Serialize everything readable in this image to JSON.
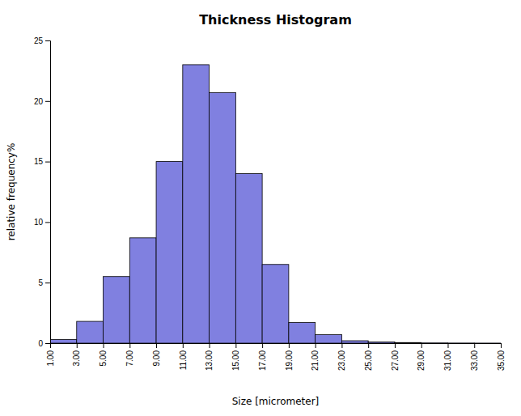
{
  "chart_data": {
    "type": "histogram",
    "title": "Thickness Histogram",
    "xlabel": "Size [micrometer]",
    "ylabel": "relative frequency%",
    "bins": [
      1,
      3,
      5,
      7,
      9,
      11,
      13,
      15,
      17,
      19,
      21,
      23,
      25,
      27,
      29,
      31,
      33,
      35
    ],
    "values": [
      0.3,
      1.8,
      5.5,
      8.7,
      15.0,
      23.0,
      20.7,
      14.0,
      6.5,
      1.7,
      0.7,
      0.2,
      0.1,
      0.05,
      0.02,
      0.01,
      0.005
    ],
    "color": "#8080e0",
    "xlim": [
      1,
      35
    ],
    "xticks": [
      {
        "value": 1,
        "label": "1.00"
      },
      {
        "value": 3,
        "label": "3.00"
      },
      {
        "value": 5,
        "label": "5.00"
      },
      {
        "value": 7,
        "label": "7.00"
      },
      {
        "value": 9,
        "label": "9.00"
      },
      {
        "value": 11,
        "label": "11.00"
      },
      {
        "value": 13,
        "label": "13.00"
      },
      {
        "value": 15,
        "label": "15.00"
      },
      {
        "value": 17,
        "label": "17.00"
      },
      {
        "value": 19,
        "label": "19.00"
      },
      {
        "value": 21,
        "label": "21.00"
      },
      {
        "value": 23,
        "label": "23.00"
      },
      {
        "value": 25,
        "label": "25.00"
      },
      {
        "value": 27,
        "label": "27.00"
      },
      {
        "value": 29,
        "label": "29.00"
      },
      {
        "value": 31,
        "label": "31.00"
      },
      {
        "value": 33,
        "label": "33.00"
      },
      {
        "value": 35,
        "label": "35.00"
      }
    ],
    "ylim": [
      0,
      25
    ],
    "yticks": [
      0,
      5,
      10,
      15,
      20,
      25
    ],
    "grid": false
  }
}
